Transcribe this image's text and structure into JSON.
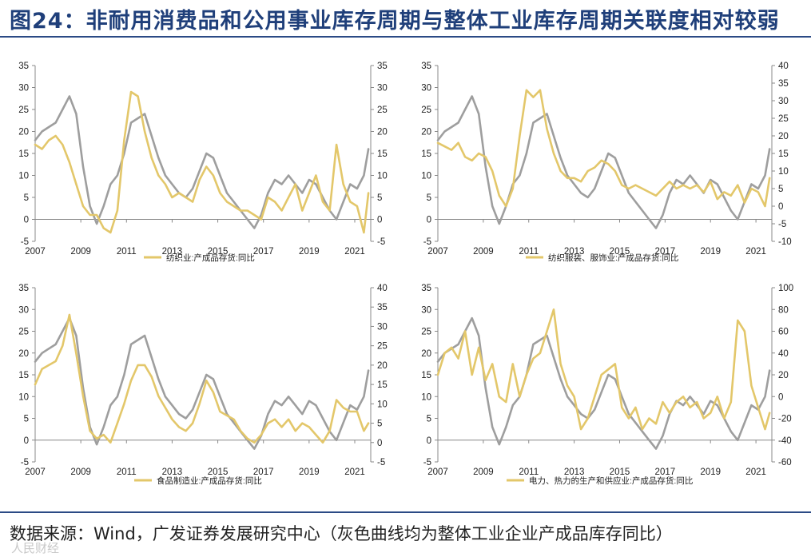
{
  "title": "图24：非耐用消费品和公用事业库存周期与整体工业库存周期关联度相对较弱",
  "source": "数据来源：Wind，广发证券发展研究中心（灰色曲线均为整体工业企业产成品库存同比）",
  "watermark": "人民财经",
  "colors": {
    "gray": "#9e9e9e",
    "gold": "#e3c76a",
    "title": "#1f3f7a",
    "rule": "#2b4a85"
  },
  "chart_data": [
    {
      "type": "line",
      "title": "",
      "x_ticks": [
        2007,
        2009,
        2011,
        2013,
        2015,
        2017,
        2019,
        2021
      ],
      "y_left": {
        "lim": [
          -5,
          35
        ],
        "ticks": [
          -5,
          0,
          5,
          10,
          15,
          20,
          25,
          30,
          35
        ]
      },
      "y_right": {
        "lim": [
          -5,
          35
        ],
        "ticks": [
          -5,
          0,
          5,
          10,
          15,
          20,
          25,
          30,
          35
        ]
      },
      "legend": [
        "纺织业:产成品存货:同比"
      ],
      "series": [
        {
          "name": "整体工业企业产成品库存同比",
          "axis": "left",
          "color": "#9e9e9e",
          "x": [
            2007.0,
            2007.3,
            2007.6,
            2007.9,
            2008.2,
            2008.5,
            2008.8,
            2009.1,
            2009.4,
            2009.7,
            2010.0,
            2010.3,
            2010.6,
            2010.9,
            2011.2,
            2011.5,
            2011.8,
            2012.1,
            2012.4,
            2012.7,
            2013.0,
            2013.3,
            2013.6,
            2013.9,
            2014.2,
            2014.5,
            2014.8,
            2015.1,
            2015.4,
            2015.7,
            2016.0,
            2016.3,
            2016.6,
            2016.9,
            2017.2,
            2017.5,
            2017.8,
            2018.1,
            2018.4,
            2018.7,
            2019.0,
            2019.3,
            2019.6,
            2019.9,
            2020.2,
            2020.5,
            2020.8,
            2021.1,
            2021.4,
            2021.6
          ],
          "values": [
            18,
            20,
            21,
            22,
            25,
            28,
            24,
            12,
            3,
            -1,
            3,
            8,
            10,
            15,
            22,
            23,
            24,
            19,
            14,
            10,
            8,
            6,
            5,
            7,
            11,
            15,
            14,
            10,
            6,
            4,
            2,
            0,
            -2,
            1,
            6,
            9,
            8,
            10,
            8,
            6,
            9,
            8,
            5,
            2,
            0,
            4,
            8,
            7,
            10,
            16
          ]
        },
        {
          "name": "纺织业:产成品存货:同比",
          "axis": "right",
          "color": "#e3c76a",
          "x": [
            2007.0,
            2007.3,
            2007.6,
            2007.9,
            2008.2,
            2008.5,
            2008.8,
            2009.1,
            2009.4,
            2009.7,
            2010.0,
            2010.3,
            2010.6,
            2010.9,
            2011.2,
            2011.5,
            2011.8,
            2012.1,
            2012.4,
            2012.7,
            2013.0,
            2013.3,
            2013.6,
            2013.9,
            2014.2,
            2014.5,
            2014.8,
            2015.1,
            2015.4,
            2015.7,
            2016.0,
            2016.3,
            2016.6,
            2016.9,
            2017.2,
            2017.5,
            2017.8,
            2018.1,
            2018.4,
            2018.7,
            2019.0,
            2019.3,
            2019.6,
            2019.9,
            2020.2,
            2020.5,
            2020.8,
            2021.1,
            2021.4,
            2021.6
          ],
          "values": [
            17,
            16,
            18,
            19,
            17,
            13,
            8,
            3,
            1,
            1,
            -2,
            -3,
            2,
            18,
            29,
            28,
            20,
            14,
            10,
            8,
            5,
            6,
            5,
            4,
            9,
            12,
            10,
            6,
            4,
            3,
            2,
            2,
            1,
            0,
            5,
            4,
            2,
            5,
            8,
            2,
            6,
            10,
            4,
            2,
            17,
            8,
            4,
            3,
            -3,
            6
          ]
        }
      ]
    },
    {
      "type": "line",
      "title": "",
      "x_ticks": [
        2007,
        2009,
        2011,
        2013,
        2015,
        2017,
        2019,
        2021
      ],
      "y_left": {
        "lim": [
          -5,
          35
        ],
        "ticks": [
          -5,
          0,
          5,
          10,
          15,
          20,
          25,
          30,
          35
        ]
      },
      "y_right": {
        "lim": [
          -10,
          40
        ],
        "ticks": [
          -10,
          -5,
          0,
          5,
          10,
          15,
          20,
          25,
          30,
          35,
          40
        ]
      },
      "legend": [
        "纺织服装、服饰业:产成品存货:同比"
      ],
      "series": [
        {
          "name": "整体工业企业产成品库存同比",
          "axis": "left",
          "color": "#9e9e9e",
          "x": [
            2007.0,
            2007.3,
            2007.6,
            2007.9,
            2008.2,
            2008.5,
            2008.8,
            2009.1,
            2009.4,
            2009.7,
            2010.0,
            2010.3,
            2010.6,
            2010.9,
            2011.2,
            2011.5,
            2011.8,
            2012.1,
            2012.4,
            2012.7,
            2013.0,
            2013.3,
            2013.6,
            2013.9,
            2014.2,
            2014.5,
            2014.8,
            2015.1,
            2015.4,
            2015.7,
            2016.0,
            2016.3,
            2016.6,
            2016.9,
            2017.2,
            2017.5,
            2017.8,
            2018.1,
            2018.4,
            2018.7,
            2019.0,
            2019.3,
            2019.6,
            2019.9,
            2020.2,
            2020.5,
            2020.8,
            2021.1,
            2021.4,
            2021.6
          ],
          "values": [
            18,
            20,
            21,
            22,
            25,
            28,
            24,
            12,
            3,
            -1,
            3,
            8,
            10,
            15,
            22,
            23,
            24,
            19,
            14,
            10,
            8,
            6,
            5,
            7,
            11,
            15,
            14,
            10,
            6,
            4,
            2,
            0,
            -2,
            1,
            6,
            9,
            8,
            10,
            8,
            6,
            9,
            8,
            5,
            2,
            0,
            4,
            8,
            7,
            10,
            16
          ]
        },
        {
          "name": "纺织服装、服饰业:产成品存货:同比",
          "axis": "right",
          "color": "#e3c76a",
          "x": [
            2007.0,
            2007.3,
            2007.6,
            2007.9,
            2008.2,
            2008.5,
            2008.8,
            2009.1,
            2009.4,
            2009.7,
            2010.0,
            2010.3,
            2010.6,
            2010.9,
            2011.2,
            2011.5,
            2011.8,
            2012.1,
            2012.4,
            2012.7,
            2013.0,
            2013.3,
            2013.6,
            2013.9,
            2014.2,
            2014.5,
            2014.8,
            2015.1,
            2015.4,
            2015.7,
            2016.0,
            2016.3,
            2016.6,
            2016.9,
            2017.2,
            2017.5,
            2017.8,
            2018.1,
            2018.4,
            2018.7,
            2019.0,
            2019.3,
            2019.6,
            2019.9,
            2020.2,
            2020.5,
            2020.8,
            2021.1,
            2021.4,
            2021.6
          ],
          "values": [
            18,
            17,
            16,
            18,
            14,
            13,
            15,
            14,
            10,
            3,
            0,
            5,
            20,
            33,
            31,
            33,
            22,
            15,
            10,
            8,
            8,
            7,
            10,
            11,
            13,
            12,
            10,
            6,
            5,
            6,
            5,
            4,
            3,
            5,
            7,
            5,
            6,
            5,
            6,
            4,
            7,
            2,
            4,
            3,
            6,
            1,
            5,
            4,
            0,
            8
          ]
        }
      ]
    },
    {
      "type": "line",
      "title": "",
      "x_ticks": [
        2007,
        2009,
        2011,
        2013,
        2015,
        2017,
        2019,
        2021
      ],
      "y_left": {
        "lim": [
          -5,
          35
        ],
        "ticks": [
          -5,
          0,
          5,
          10,
          15,
          20,
          25,
          30,
          35
        ]
      },
      "y_right": {
        "lim": [
          -5,
          40
        ],
        "ticks": [
          -5,
          0,
          5,
          10,
          15,
          20,
          25,
          30,
          35,
          40
        ]
      },
      "legend": [
        "食品制造业:产成品存货:同比"
      ],
      "series": [
        {
          "name": "整体工业企业产成品库存同比",
          "axis": "left",
          "color": "#9e9e9e",
          "x": [
            2007.0,
            2007.3,
            2007.6,
            2007.9,
            2008.2,
            2008.5,
            2008.8,
            2009.1,
            2009.4,
            2009.7,
            2010.0,
            2010.3,
            2010.6,
            2010.9,
            2011.2,
            2011.5,
            2011.8,
            2012.1,
            2012.4,
            2012.7,
            2013.0,
            2013.3,
            2013.6,
            2013.9,
            2014.2,
            2014.5,
            2014.8,
            2015.1,
            2015.4,
            2015.7,
            2016.0,
            2016.3,
            2016.6,
            2016.9,
            2017.2,
            2017.5,
            2017.8,
            2018.1,
            2018.4,
            2018.7,
            2019.0,
            2019.3,
            2019.6,
            2019.9,
            2020.2,
            2020.5,
            2020.8,
            2021.1,
            2021.4,
            2021.6
          ],
          "values": [
            18,
            20,
            21,
            22,
            25,
            28,
            24,
            12,
            3,
            -1,
            3,
            8,
            10,
            15,
            22,
            23,
            24,
            19,
            14,
            10,
            8,
            6,
            5,
            7,
            11,
            15,
            14,
            10,
            6,
            4,
            2,
            0,
            -2,
            1,
            6,
            9,
            8,
            10,
            8,
            6,
            9,
            8,
            5,
            2,
            0,
            4,
            8,
            7,
            10,
            16
          ]
        },
        {
          "name": "食品制造业:产成品存货:同比",
          "axis": "right",
          "color": "#e3c76a",
          "x": [
            2007.0,
            2007.3,
            2007.6,
            2007.9,
            2008.2,
            2008.5,
            2008.8,
            2009.1,
            2009.4,
            2009.7,
            2010.0,
            2010.3,
            2010.6,
            2010.9,
            2011.2,
            2011.5,
            2011.8,
            2012.1,
            2012.4,
            2012.7,
            2013.0,
            2013.3,
            2013.6,
            2013.9,
            2014.2,
            2014.5,
            2014.8,
            2015.1,
            2015.4,
            2015.7,
            2016.0,
            2016.3,
            2016.6,
            2016.9,
            2017.2,
            2017.5,
            2017.8,
            2018.1,
            2018.4,
            2018.7,
            2019.0,
            2019.3,
            2019.6,
            2019.9,
            2020.2,
            2020.5,
            2020.8,
            2021.1,
            2021.4,
            2021.6
          ],
          "values": [
            15,
            19,
            20,
            21,
            25,
            33,
            23,
            12,
            3,
            1,
            2,
            0,
            5,
            10,
            16,
            20,
            20,
            17,
            12,
            9,
            6,
            4,
            3,
            5,
            10,
            16,
            13,
            8,
            7,
            6,
            3,
            1,
            0,
            2,
            5,
            6,
            4,
            6,
            3,
            5,
            4,
            2,
            0,
            3,
            11,
            9,
            8,
            8,
            3,
            5
          ]
        }
      ]
    },
    {
      "type": "line",
      "title": "",
      "x_ticks": [
        2007,
        2009,
        2011,
        2013,
        2015,
        2017,
        2019,
        2021
      ],
      "y_left": {
        "lim": [
          -5,
          35
        ],
        "ticks": [
          -5,
          0,
          5,
          10,
          15,
          20,
          25,
          30,
          35
        ]
      },
      "y_right": {
        "lim": [
          -60,
          100
        ],
        "ticks": [
          -60,
          -40,
          -20,
          0,
          20,
          40,
          60,
          80,
          100
        ]
      },
      "legend": [
        "电力、热力的生产和供应业:产成品存货:同比"
      ],
      "series": [
        {
          "name": "整体工业企业产成品库存同比",
          "axis": "left",
          "color": "#9e9e9e",
          "x": [
            2007.0,
            2007.3,
            2007.6,
            2007.9,
            2008.2,
            2008.5,
            2008.8,
            2009.1,
            2009.4,
            2009.7,
            2010.0,
            2010.3,
            2010.6,
            2010.9,
            2011.2,
            2011.5,
            2011.8,
            2012.1,
            2012.4,
            2012.7,
            2013.0,
            2013.3,
            2013.6,
            2013.9,
            2014.2,
            2014.5,
            2014.8,
            2015.1,
            2015.4,
            2015.7,
            2016.0,
            2016.3,
            2016.6,
            2016.9,
            2017.2,
            2017.5,
            2017.8,
            2018.1,
            2018.4,
            2018.7,
            2019.0,
            2019.3,
            2019.6,
            2019.9,
            2020.2,
            2020.5,
            2020.8,
            2021.1,
            2021.4,
            2021.6
          ],
          "values": [
            18,
            20,
            21,
            22,
            25,
            28,
            24,
            12,
            3,
            -1,
            3,
            8,
            10,
            15,
            22,
            23,
            24,
            19,
            14,
            10,
            8,
            6,
            5,
            7,
            11,
            15,
            14,
            10,
            6,
            4,
            2,
            0,
            -2,
            1,
            6,
            9,
            8,
            10,
            8,
            6,
            9,
            8,
            5,
            2,
            0,
            4,
            8,
            7,
            10,
            16
          ]
        },
        {
          "name": "电力、热力的生产和供应业:产成品存货:同比",
          "axis": "right",
          "color": "#e3c76a",
          "x": [
            2007.0,
            2007.3,
            2007.6,
            2007.9,
            2008.2,
            2008.5,
            2008.8,
            2009.1,
            2009.4,
            2009.7,
            2010.0,
            2010.3,
            2010.6,
            2010.9,
            2011.2,
            2011.5,
            2011.8,
            2012.1,
            2012.4,
            2012.7,
            2013.0,
            2013.3,
            2013.6,
            2013.9,
            2014.2,
            2014.5,
            2014.8,
            2015.1,
            2015.4,
            2015.7,
            2016.0,
            2016.3,
            2016.6,
            2016.9,
            2017.2,
            2017.5,
            2017.8,
            2018.1,
            2018.4,
            2018.7,
            2019.0,
            2019.3,
            2019.6,
            2019.9,
            2020.2,
            2020.5,
            2020.8,
            2021.1,
            2021.4,
            2021.6
          ],
          "values": [
            20,
            40,
            45,
            35,
            60,
            20,
            45,
            15,
            30,
            0,
            -5,
            30,
            0,
            20,
            35,
            40,
            60,
            80,
            30,
            10,
            0,
            -30,
            -20,
            0,
            20,
            25,
            30,
            -10,
            -20,
            -10,
            -30,
            -20,
            -25,
            -5,
            -15,
            -5,
            0,
            -10,
            -5,
            -20,
            -15,
            0,
            -20,
            -5,
            70,
            60,
            10,
            -10,
            -30,
            -15
          ]
        }
      ]
    }
  ]
}
